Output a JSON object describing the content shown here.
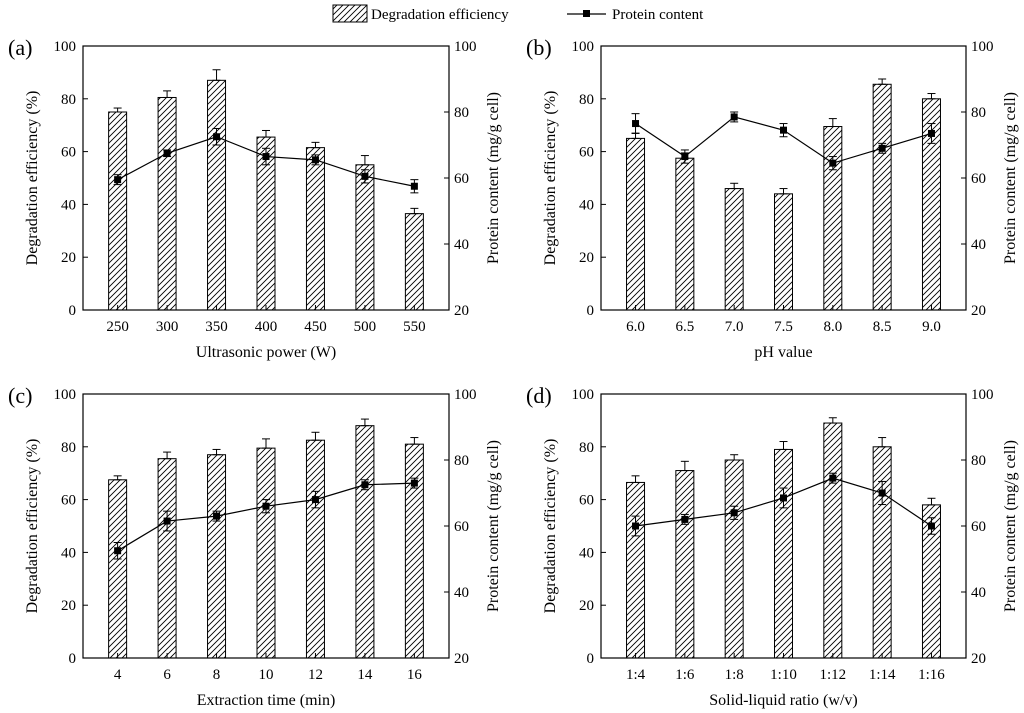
{
  "legend": {
    "bar_label": "Degradation efficiency",
    "line_label": "Protein content"
  },
  "chart_data": [
    {
      "type": "bar",
      "panel_label": "(a)",
      "categories": [
        "250",
        "300",
        "350",
        "400",
        "450",
        "500",
        "550"
      ],
      "series": [
        {
          "name": "Degradation efficiency",
          "axis": "left",
          "kind": "bar",
          "values": [
            75,
            80.5,
            87,
            65.5,
            61.5,
            55,
            36.5
          ],
          "errors": [
            1.5,
            2.5,
            4,
            2.5,
            2,
            3.5,
            2
          ]
        },
        {
          "name": "Protein content",
          "axis": "right",
          "kind": "line",
          "values": [
            59.5,
            67.5,
            72.5,
            66.5,
            65.5,
            60.5,
            57.5
          ],
          "errors": [
            1.5,
            1,
            2.5,
            2.5,
            1.5,
            2,
            2
          ]
        }
      ],
      "xlabel": "Ultrasonic power (W)",
      "ylabel": "Degradation efficiency (%)",
      "y2label": "Protein content (mg/g cell)",
      "ylim": [
        0,
        100
      ],
      "y2lim": [
        20,
        100
      ],
      "yticks": [
        0,
        20,
        40,
        60,
        80,
        100
      ],
      "y2ticks": [
        20,
        40,
        60,
        80,
        100
      ]
    },
    {
      "type": "bar",
      "panel_label": "(b)",
      "categories": [
        "6.0",
        "6.5",
        "7.0",
        "7.5",
        "8.0",
        "8.5",
        "9.0"
      ],
      "series": [
        {
          "name": "Degradation efficiency",
          "axis": "left",
          "kind": "bar",
          "values": [
            65,
            57.5,
            46,
            44,
            69.5,
            85.5,
            80
          ],
          "errors": [
            2,
            2,
            2,
            2,
            3,
            2,
            2
          ]
        },
        {
          "name": "Protein content",
          "axis": "right",
          "kind": "line",
          "values": [
            76.5,
            66.5,
            78.5,
            74.5,
            64.5,
            69,
            73.5
          ],
          "errors": [
            3,
            2,
            1.5,
            2,
            2,
            1.5,
            3
          ]
        }
      ],
      "xlabel": "pH value",
      "ylabel": "Degradation efficiency (%)",
      "y2label": "Protein content (mg/g cell)",
      "ylim": [
        0,
        100
      ],
      "y2lim": [
        20,
        100
      ],
      "yticks": [
        0,
        20,
        40,
        60,
        80,
        100
      ],
      "y2ticks": [
        20,
        40,
        60,
        80,
        100
      ]
    },
    {
      "type": "bar",
      "panel_label": "(c)",
      "categories": [
        "4",
        "6",
        "8",
        "10",
        "12",
        "14",
        "16"
      ],
      "series": [
        {
          "name": "Degradation efficiency",
          "axis": "left",
          "kind": "bar",
          "values": [
            67.5,
            75.5,
            77,
            79.5,
            82.5,
            88,
            81
          ],
          "errors": [
            1.5,
            2.5,
            2,
            3.5,
            3,
            2.5,
            2.5
          ]
        },
        {
          "name": "Protein content",
          "axis": "right",
          "kind": "line",
          "values": [
            52.5,
            61.5,
            63,
            66,
            68,
            72.5,
            73
          ],
          "errors": [
            2.5,
            3,
            1.5,
            2,
            2.5,
            1.5,
            1.5
          ]
        }
      ],
      "xlabel": "Extraction time (min)",
      "ylabel": "Degradation efficiency (%)",
      "y2label": "Protein content (mg/g cell)",
      "ylim": [
        0,
        100
      ],
      "y2lim": [
        20,
        100
      ],
      "yticks": [
        0,
        20,
        40,
        60,
        80,
        100
      ],
      "y2ticks": [
        20,
        40,
        60,
        80,
        100
      ]
    },
    {
      "type": "bar",
      "panel_label": "(d)",
      "categories": [
        "1:4",
        "1:6",
        "1:8",
        "1:10",
        "1:12",
        "1:14",
        "1:16"
      ],
      "series": [
        {
          "name": "Degradation efficiency",
          "axis": "left",
          "kind": "bar",
          "values": [
            66.5,
            71,
            75,
            79,
            89,
            80,
            58
          ],
          "errors": [
            2.5,
            3.5,
            2,
            3,
            2,
            3.5,
            2.5
          ]
        },
        {
          "name": "Protein content",
          "axis": "right",
          "kind": "line",
          "values": [
            60,
            62,
            64,
            68.5,
            74.5,
            70,
            60
          ],
          "errors": [
            3,
            1.5,
            2,
            3,
            1.5,
            3.5,
            2.5
          ]
        }
      ],
      "xlabel": "Solid-liquid ratio (w/v)",
      "ylabel": "Degradation efficiency (%)",
      "y2label": "Protein content (mg/g cell)",
      "ylim": [
        0,
        100
      ],
      "y2lim": [
        20,
        100
      ],
      "yticks": [
        0,
        20,
        40,
        60,
        80,
        100
      ],
      "y2ticks": [
        20,
        40,
        60,
        80,
        100
      ]
    }
  ]
}
